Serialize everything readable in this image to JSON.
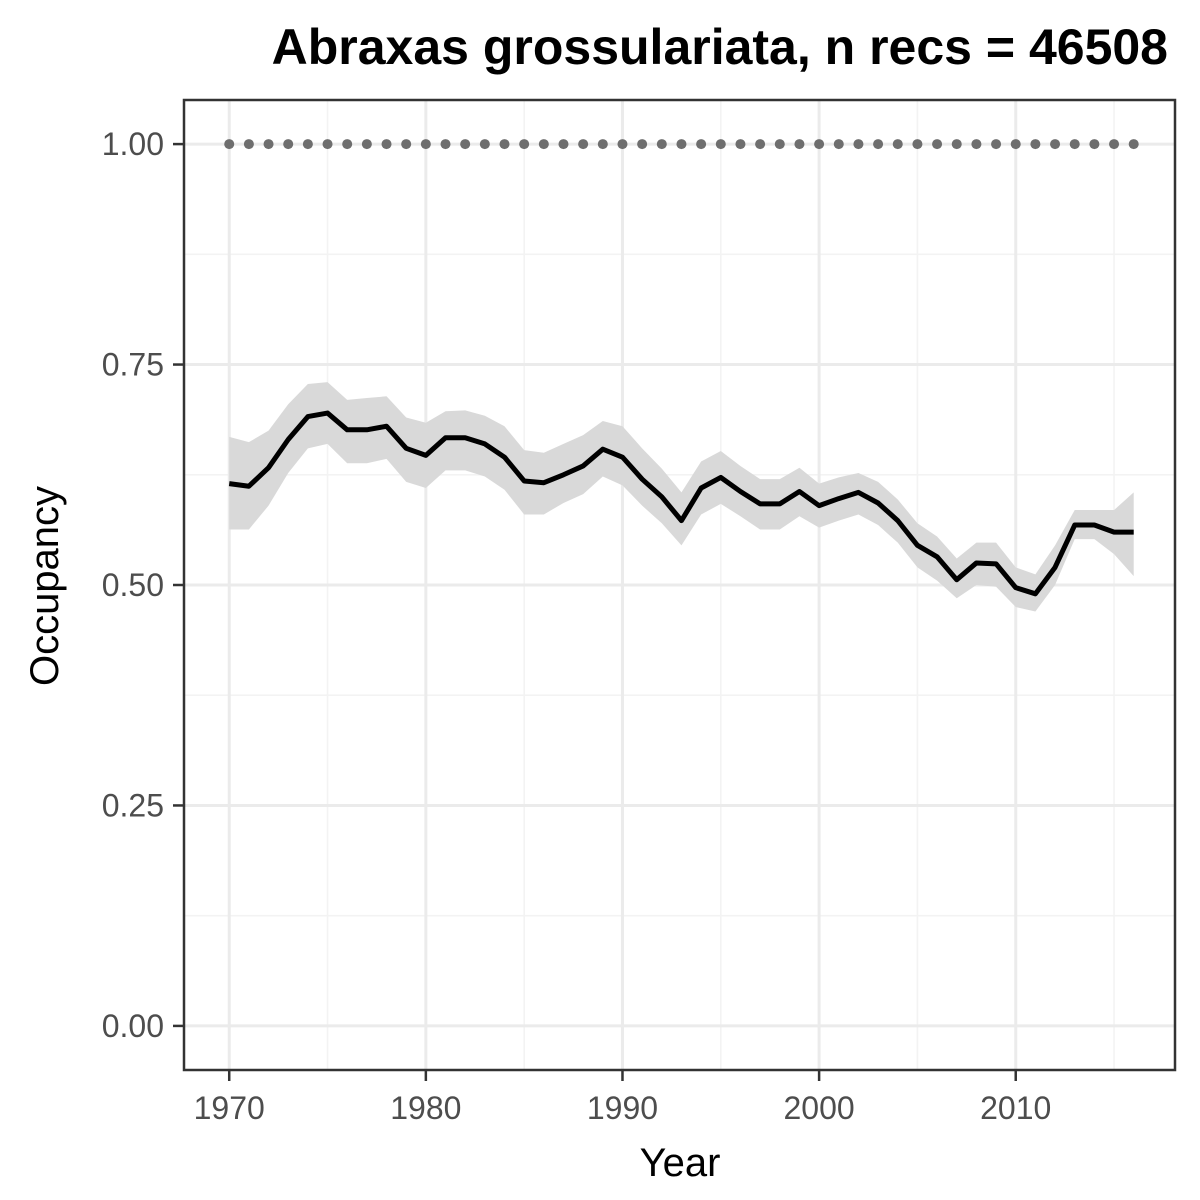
{
  "chart_data": {
    "type": "line",
    "title": "Abraxas grossulariata, n recs = 46508",
    "xlabel": "Year",
    "ylabel": "Occupancy",
    "xlim": [
      1967.7,
      2018.1
    ],
    "ylim": [
      -0.05,
      1.05
    ],
    "x_ticks": [
      1970,
      1980,
      1990,
      2000,
      2010
    ],
    "y_ticks": [
      0.0,
      0.25,
      0.5,
      0.75,
      1.0
    ],
    "x_tick_labels": [
      "1970",
      "1980",
      "1990",
      "2000",
      "2010"
    ],
    "y_tick_labels": [
      "0.00",
      "0.25",
      "0.50",
      "0.75",
      "1.00"
    ],
    "grid": true,
    "legend": "none",
    "colors": {
      "line": "#000000",
      "ribbon": "#d9d9d9",
      "reference_points": "#6e6e6e",
      "panel_border": "#333333",
      "grid": "#ebebeb"
    },
    "x": [
      1970,
      1971,
      1972,
      1973,
      1974,
      1975,
      1976,
      1977,
      1978,
      1979,
      1980,
      1981,
      1982,
      1983,
      1984,
      1985,
      1986,
      1987,
      1988,
      1989,
      1990,
      1991,
      1992,
      1993,
      1994,
      1995,
      1996,
      1997,
      1998,
      1999,
      2000,
      2001,
      2002,
      2003,
      2004,
      2005,
      2006,
      2007,
      2008,
      2009,
      2010,
      2011,
      2012,
      2013,
      2014,
      2015,
      2016
    ],
    "series": [
      {
        "values": [
          0.615,
          0.612,
          0.633,
          0.665,
          0.691,
          0.695,
          0.676,
          0.676,
          0.68,
          0.655,
          0.647,
          0.667,
          0.667,
          0.66,
          0.645,
          0.618,
          0.616,
          0.625,
          0.635,
          0.654,
          0.645,
          0.62,
          0.6,
          0.573,
          0.61,
          0.622,
          0.606,
          0.592,
          0.592,
          0.606,
          0.59,
          0.598,
          0.605,
          0.593,
          0.573,
          0.545,
          0.532,
          0.506,
          0.525,
          0.524,
          0.497,
          0.49,
          0.52,
          0.568,
          0.568,
          0.56,
          0.56
        ],
        "lower": [
          0.563,
          0.563,
          0.59,
          0.627,
          0.655,
          0.66,
          0.638,
          0.638,
          0.643,
          0.617,
          0.61,
          0.63,
          0.63,
          0.623,
          0.608,
          0.58,
          0.58,
          0.593,
          0.603,
          0.623,
          0.613,
          0.59,
          0.57,
          0.545,
          0.58,
          0.592,
          0.578,
          0.563,
          0.563,
          0.578,
          0.565,
          0.573,
          0.58,
          0.568,
          0.548,
          0.52,
          0.505,
          0.485,
          0.5,
          0.498,
          0.475,
          0.47,
          0.5,
          0.552,
          0.552,
          0.535,
          0.51
        ],
        "upper": [
          0.668,
          0.662,
          0.675,
          0.705,
          0.728,
          0.73,
          0.71,
          0.712,
          0.714,
          0.69,
          0.684,
          0.697,
          0.698,
          0.692,
          0.68,
          0.653,
          0.65,
          0.66,
          0.67,
          0.686,
          0.68,
          0.655,
          0.632,
          0.605,
          0.64,
          0.652,
          0.635,
          0.62,
          0.62,
          0.633,
          0.615,
          0.622,
          0.627,
          0.617,
          0.597,
          0.57,
          0.555,
          0.53,
          0.548,
          0.548,
          0.52,
          0.512,
          0.545,
          0.585,
          0.585,
          0.585,
          0.605
        ]
      }
    ],
    "reference_points": {
      "x": [
        1970,
        1971,
        1972,
        1973,
        1974,
        1975,
        1976,
        1977,
        1978,
        1979,
        1980,
        1981,
        1982,
        1983,
        1984,
        1985,
        1986,
        1987,
        1988,
        1989,
        1990,
        1991,
        1992,
        1993,
        1994,
        1995,
        1996,
        1997,
        1998,
        1999,
        2000,
        2001,
        2002,
        2003,
        2004,
        2005,
        2006,
        2007,
        2008,
        2009,
        2010,
        2011,
        2012,
        2013,
        2014,
        2015,
        2016
      ],
      "y": 1.0
    }
  }
}
